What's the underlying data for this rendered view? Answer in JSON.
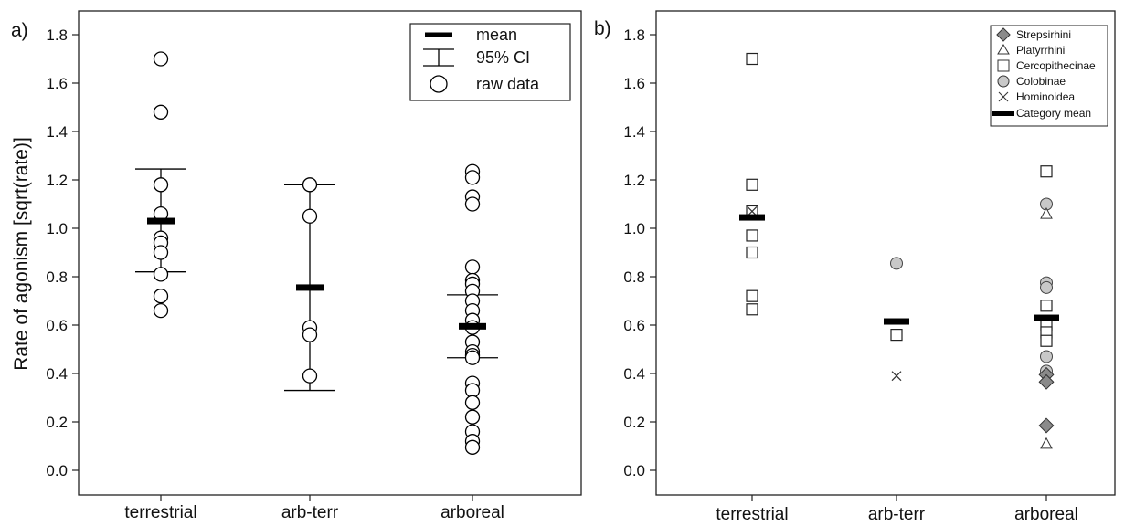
{
  "chart_data": [
    {
      "panel_label": "a)",
      "type": "scatter",
      "ylabel": "Rate of agonism [sqrt(rate)]",
      "ylim": [
        0.0,
        1.8
      ],
      "yticks": [
        "0.0",
        "0.2",
        "0.4",
        "0.6",
        "0.8",
        "1.0",
        "1.2",
        "1.4",
        "1.6",
        "1.8"
      ],
      "categories": [
        "terrestrial",
        "arb-terr",
        "arboreal"
      ],
      "legend": {
        "position": "top-right",
        "entries": [
          {
            "key": "mean",
            "label": "mean",
            "symbol": "thick-bar"
          },
          {
            "key": "ci",
            "label": "95% CI",
            "symbol": "errorbar"
          },
          {
            "key": "raw",
            "label": "raw data",
            "symbol": "open-circle"
          }
        ]
      },
      "groups": [
        {
          "category": "terrestrial",
          "mean": 1.03,
          "ci": [
            0.82,
            1.245
          ],
          "raw": [
            1.7,
            1.48,
            1.18,
            1.06,
            0.96,
            0.94,
            0.9,
            0.81,
            0.72,
            0.66
          ]
        },
        {
          "category": "arb-terr",
          "mean": 0.755,
          "ci": [
            0.33,
            1.18
          ],
          "raw": [
            1.18,
            1.05,
            0.59,
            0.56,
            0.39
          ]
        },
        {
          "category": "arboreal",
          "mean": 0.595,
          "ci": [
            0.465,
            0.725
          ],
          "raw": [
            1.235,
            1.21,
            1.13,
            1.1,
            0.84,
            0.785,
            0.77,
            0.74,
            0.7,
            0.66,
            0.62,
            0.59,
            0.53,
            0.49,
            0.475,
            0.465,
            0.36,
            0.33,
            0.28,
            0.22,
            0.16,
            0.12,
            0.095
          ]
        }
      ]
    },
    {
      "panel_label": "b)",
      "type": "scatter",
      "ylim": [
        0.0,
        1.8
      ],
      "yticks": [
        "0.0",
        "0.2",
        "0.4",
        "0.6",
        "0.8",
        "1.0",
        "1.2",
        "1.4",
        "1.6",
        "1.8"
      ],
      "categories": [
        "terrestrial",
        "arb-terr",
        "arboreal"
      ],
      "legend": {
        "position": "top-right",
        "entries": [
          {
            "key": "strepsirhini",
            "label": "Strepsirhini",
            "symbol": "filled-diamond"
          },
          {
            "key": "platyrrhini",
            "label": "Platyrrhini",
            "symbol": "open-triangle"
          },
          {
            "key": "cercopithecinae",
            "label": "Cercopithecinae",
            "symbol": "open-square"
          },
          {
            "key": "colobinae",
            "label": "Colobinae",
            "symbol": "gray-circle"
          },
          {
            "key": "hominoidea",
            "label": "Hominoidea",
            "symbol": "cross"
          },
          {
            "key": "mean",
            "label": "Category mean",
            "symbol": "thick-bar"
          }
        ]
      },
      "groups": [
        {
          "category": "terrestrial",
          "mean": 1.045,
          "points": [
            {
              "taxon": "cercopithecinae",
              "y": 1.7
            },
            {
              "taxon": "cercopithecinae",
              "y": 1.18
            },
            {
              "taxon": "cercopithecinae",
              "y": 1.07
            },
            {
              "taxon": "hominoidea",
              "y": 1.07
            },
            {
              "taxon": "cercopithecinae",
              "y": 0.97
            },
            {
              "taxon": "cercopithecinae",
              "y": 0.9
            },
            {
              "taxon": "cercopithecinae",
              "y": 0.72
            },
            {
              "taxon": "cercopithecinae",
              "y": 0.665
            }
          ]
        },
        {
          "category": "arb-terr",
          "mean": 0.615,
          "points": [
            {
              "taxon": "colobinae",
              "y": 0.855
            },
            {
              "taxon": "cercopithecinae",
              "y": 0.56
            },
            {
              "taxon": "hominoidea",
              "y": 0.39
            }
          ]
        },
        {
          "category": "arboreal",
          "mean": 0.63,
          "points": [
            {
              "taxon": "cercopithecinae",
              "y": 1.235
            },
            {
              "taxon": "colobinae",
              "y": 1.1
            },
            {
              "taxon": "platyrrhini",
              "y": 1.06
            },
            {
              "taxon": "colobinae",
              "y": 0.775
            },
            {
              "taxon": "colobinae",
              "y": 0.755
            },
            {
              "taxon": "cercopithecinae",
              "y": 0.68
            },
            {
              "taxon": "cercopithecinae",
              "y": 0.6
            },
            {
              "taxon": "cercopithecinae",
              "y": 0.57
            },
            {
              "taxon": "cercopithecinae",
              "y": 0.535
            },
            {
              "taxon": "colobinae",
              "y": 0.47
            },
            {
              "taxon": "colobinae",
              "y": 0.41
            },
            {
              "taxon": "strepsirhini",
              "y": 0.395
            },
            {
              "taxon": "strepsirhini",
              "y": 0.365
            },
            {
              "taxon": "strepsirhini",
              "y": 0.185
            },
            {
              "taxon": "platyrrhini",
              "y": 0.11
            }
          ]
        }
      ]
    }
  ]
}
